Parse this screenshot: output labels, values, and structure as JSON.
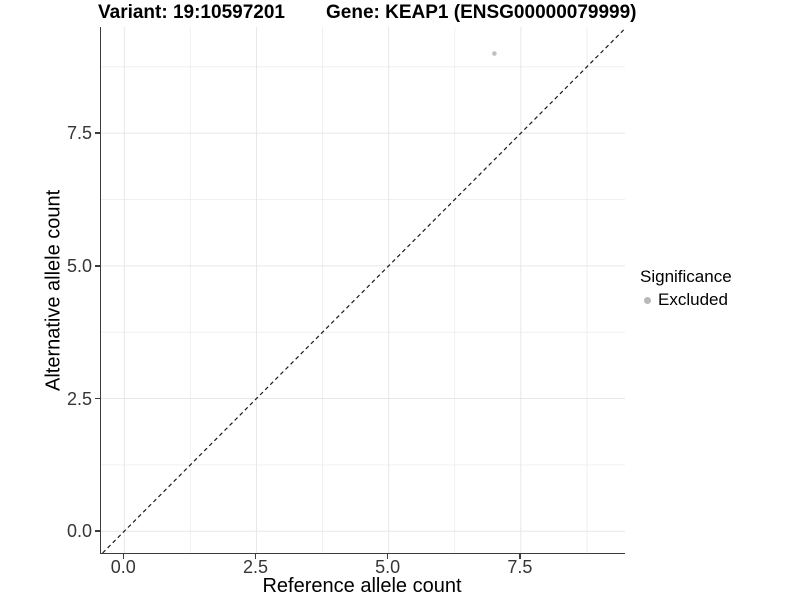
{
  "chart_data": {
    "type": "scatter",
    "title_left": "Variant: 19:10597201",
    "title_right": "Gene: KEAP1 (ENSG00000079999)",
    "xlabel": "Reference allele count",
    "ylabel": "Alternative allele count",
    "xlim": [
      -0.44,
      9.47
    ],
    "ylim": [
      -0.41,
      9.5
    ],
    "x_ticks": [
      0,
      2.5,
      5,
      7.5
    ],
    "x_tick_labels": [
      "0.0",
      "2.5",
      "5.0",
      "7.5"
    ],
    "y_ticks": [
      0,
      2.5,
      5,
      7.5
    ],
    "y_tick_labels": [
      "0.0",
      "2.5",
      "5.0",
      "7.5"
    ],
    "x_minor_ticks": [
      1.25,
      3.75,
      6.25,
      8.75
    ],
    "y_minor_ticks": [
      1.25,
      3.75,
      6.25,
      8.75
    ],
    "grid": true,
    "points": [
      {
        "x": 7,
        "y": 9,
        "significance": "Excluded"
      }
    ],
    "reference_line": {
      "type": "identity",
      "style": "dashed"
    },
    "legend": {
      "title": "Significance",
      "position": "right",
      "items": [
        {
          "label": "Excluded",
          "color": "#b8b8b8"
        }
      ]
    },
    "colors": {
      "point": "#c0c0c0",
      "grid_major": "#e7e7e7",
      "grid_minor": "#f0f0f0",
      "axis_line": "#3c3c3c",
      "dashed_line": "#1a1a1a"
    }
  }
}
